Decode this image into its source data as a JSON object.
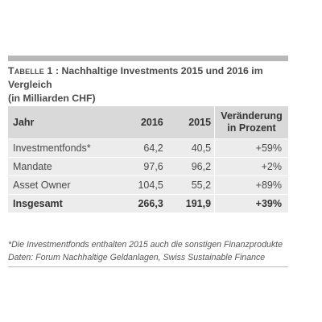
{
  "title": {
    "label": "Tabelle 1",
    "separator": " : ",
    "line1": "Nachhaltige Investments 2015 und 2016 im Vergleich",
    "line2": "(in Milliarden CHF)"
  },
  "table": {
    "headers": {
      "label": "Jahr",
      "y2016": "2016",
      "y2015": "2015",
      "change_line1": "Veränderung",
      "change_line2": "in Prozent"
    },
    "rows": [
      {
        "label": "Investmentfonds*",
        "y2016": "64,2",
        "y2015": "40,5",
        "change": "+59%"
      },
      {
        "label": "Mandate",
        "y2016": "97,6",
        "y2015": "96,2",
        "change": "+2%"
      },
      {
        "label": "Asset Owner",
        "y2016": "104,5",
        "y2015": "55,2",
        "change": "+89%"
      }
    ],
    "total": {
      "label": "Insgesamt",
      "y2016": "266,3",
      "y2015": "191,9",
      "change": "+39%"
    }
  },
  "footnote": {
    "line1": "*Die Investmentfonds enthalten 2015 auch die sonstigen Finanzprodukte",
    "line2": "Daten: Forum Nachhaltige Geldanlagen, Swiss Sustainable Finance"
  }
}
